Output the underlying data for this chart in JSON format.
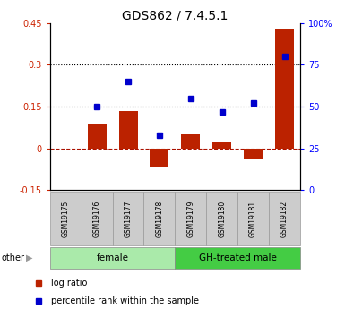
{
  "title": "GDS862 / 7.4.5.1",
  "samples": [
    "GSM19175",
    "GSM19176",
    "GSM19177",
    "GSM19178",
    "GSM19179",
    "GSM19180",
    "GSM19181",
    "GSM19182"
  ],
  "log_ratio": [
    0.0,
    0.09,
    0.135,
    -0.07,
    0.05,
    0.02,
    -0.04,
    0.43
  ],
  "percentile_rank": [
    null,
    50,
    65,
    33,
    55,
    47,
    52,
    80
  ],
  "groups": [
    {
      "label": "female",
      "start": 0,
      "end": 4,
      "color": "#aaeaaa"
    },
    {
      "label": "GH-treated male",
      "start": 4,
      "end": 8,
      "color": "#44cc44"
    }
  ],
  "bar_color": "#BB2200",
  "dot_color": "#0000CC",
  "ylim_left": [
    -0.15,
    0.45
  ],
  "ylim_right": [
    0,
    100
  ],
  "yticks_left": [
    -0.15,
    0.0,
    0.15,
    0.3,
    0.45
  ],
  "yticks_right": [
    0,
    25,
    50,
    75,
    100
  ],
  "ytick_labels_left": [
    "-0.15",
    "0",
    "0.15",
    "0.3",
    "0.45"
  ],
  "ytick_labels_right": [
    "0",
    "25",
    "50",
    "75",
    "100%"
  ],
  "hlines": [
    0.15,
    0.3
  ],
  "zero_line": 0.0,
  "legend_items": [
    "log ratio",
    "percentile rank within the sample"
  ],
  "other_label": "other",
  "label_box_color": "#cccccc",
  "label_box_edge": "#999999"
}
